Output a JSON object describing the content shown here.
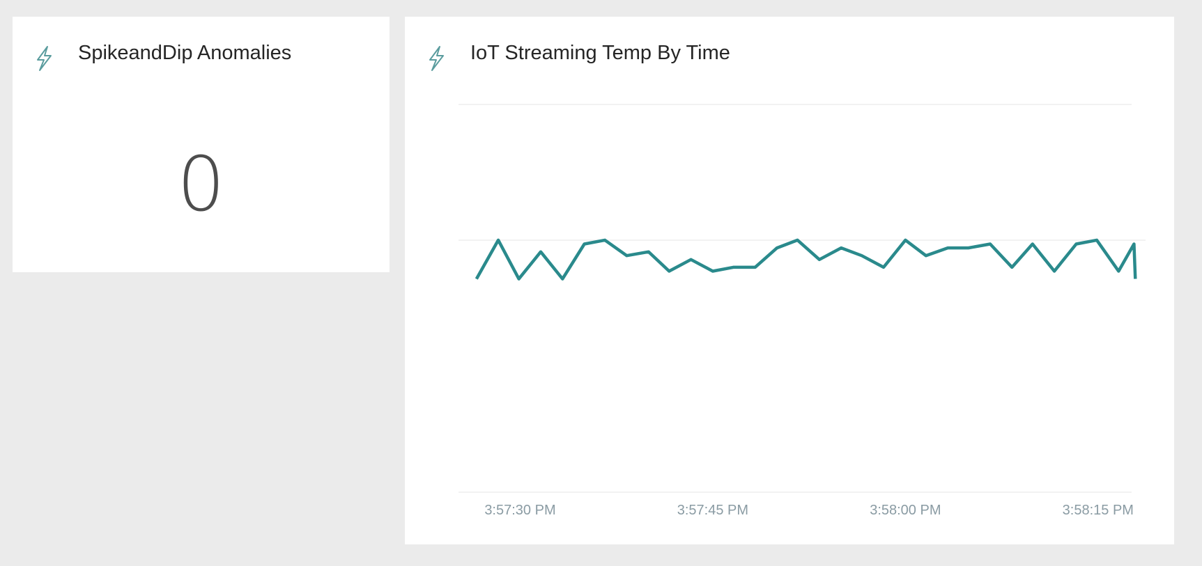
{
  "card": {
    "title": "SpikeandDip Anomalies",
    "value": "0",
    "icon": "lightning-icon"
  },
  "chart_tile": {
    "title": "IoT Streaming Temp By Time",
    "icon": "lightning-icon"
  },
  "colors": {
    "background": "#ebebeb",
    "tile": "#ffffff",
    "line": "#2a8a8c",
    "icon": "#5a9c9e",
    "tick_text": "#8a9ba3",
    "gridline": "#eeeeee"
  },
  "chart_data": {
    "type": "line",
    "title": "IoT Streaming Temp By Time",
    "xlabel": "",
    "ylabel": "",
    "x_ticks": [
      "3:57:30 PM",
      "3:57:45 PM",
      "3:58:00 PM",
      "3:58:15 PM"
    ],
    "x_tick_seconds": [
      30,
      45,
      60,
      75
    ],
    "xlim_seconds": [
      25.2,
      78.7
    ],
    "ylim": [
      0,
      100
    ],
    "grid": true,
    "legend": "none",
    "series": [
      {
        "x_seconds": [
          26.6,
          28.3,
          29.9,
          31.6,
          33.3,
          35.0,
          36.6,
          38.3,
          40.0,
          41.6,
          43.3,
          45.0,
          46.6,
          48.3,
          50.0,
          51.6,
          53.3,
          55.0,
          56.6,
          58.3,
          60.0,
          61.6,
          63.3,
          64.9,
          66.6,
          68.3,
          69.9,
          71.6,
          73.3,
          74.9,
          76.6,
          77.8,
          77.9
        ],
        "y": [
          55,
          65,
          55,
          62,
          55,
          64,
          65,
          61,
          62,
          57,
          60,
          57,
          58,
          58,
          63,
          65,
          60,
          63,
          61,
          58,
          65,
          61,
          63,
          63,
          64,
          58,
          64,
          57,
          64,
          65,
          57,
          64,
          55
        ]
      }
    ]
  }
}
